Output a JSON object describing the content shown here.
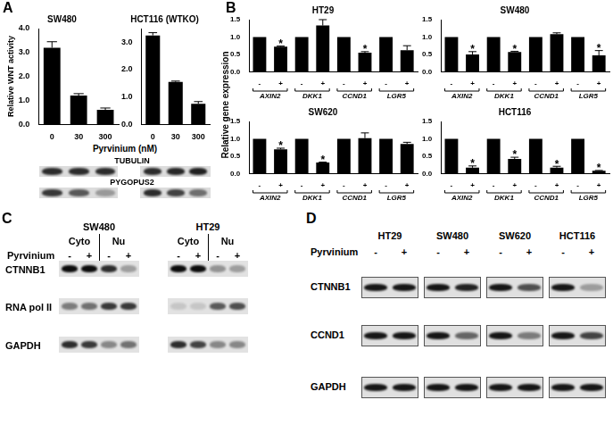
{
  "chart_data": [
    {
      "panel": "A",
      "type": "bar",
      "title": "SW480",
      "ylabel": "Relative WNT activity",
      "xlabel": "Pyrvinium (nM)",
      "categories": [
        "0",
        "30",
        "300"
      ],
      "values": [
        3.2,
        1.2,
        0.6
      ],
      "errors": [
        0.25,
        0.08,
        0.08
      ],
      "color": "#000000",
      "ylim": [
        0,
        4
      ],
      "yticks": [
        {
          "value": 0,
          "label": "0.0"
        },
        {
          "value": 1,
          "label": "1.0"
        },
        {
          "value": 2,
          "label": "2.0"
        },
        {
          "value": 3,
          "label": "3.0"
        },
        {
          "value": 4,
          "label": "4.0"
        }
      ],
      "grid": false
    },
    {
      "type": "bar",
      "title": "HCT116 (WTKO)",
      "categories": [
        "0",
        "30",
        "300"
      ],
      "values": [
        3.25,
        1.55,
        0.75
      ],
      "errors": [
        0.1,
        0.03,
        0.08
      ],
      "color": "#000000",
      "ylim": [
        0,
        3.5
      ],
      "yticks": [
        {
          "value": 0,
          "label": "0.0"
        },
        {
          "value": 1,
          "label": "1.0"
        },
        {
          "value": 2,
          "label": "2.0"
        },
        {
          "value": 3,
          "label": "3.0"
        }
      ],
      "grid": false
    },
    {
      "panel": "B",
      "type": "bar",
      "title": "HT29",
      "ylabel": "Relative gene expression",
      "categories": [
        "-",
        "+",
        "-",
        "+",
        "-",
        "+",
        "-",
        "+"
      ],
      "groups": [
        "AXIN2",
        "DKK1",
        "CCND1",
        "LGR5"
      ],
      "values": [
        1,
        0.72,
        1,
        1.33,
        1,
        0.55,
        1,
        0.62
      ],
      "errors": [
        0,
        0.02,
        0,
        0.17,
        0,
        0.03,
        0,
        0.13
      ],
      "annotations": [
        {
          "index": 1,
          "text": "*"
        },
        {
          "index": 5,
          "text": "*"
        }
      ],
      "color": "#000000",
      "ylim": [
        0,
        1.5
      ],
      "yticks": [
        {
          "value": 0,
          "label": "0.0"
        },
        {
          "value": 0.5,
          "label": "0.5"
        },
        {
          "value": 1,
          "label": "1.0"
        },
        {
          "value": 1.5,
          "label": "1.5"
        }
      ],
      "grid": false
    },
    {
      "type": "bar",
      "title": "SW480",
      "categories": [
        "-",
        "+",
        "-",
        "+",
        "-",
        "+",
        "-",
        "+"
      ],
      "groups": [
        "AXIN2",
        "DKK1",
        "CCND1",
        "LGR5"
      ],
      "values": [
        1,
        0.5,
        1,
        0.57,
        1,
        1.08,
        1,
        0.47
      ],
      "errors": [
        0,
        0.08,
        0,
        0.02,
        0,
        0.04,
        0,
        0.14
      ],
      "annotations": [
        {
          "index": 1,
          "text": "*"
        },
        {
          "index": 3,
          "text": "*"
        },
        {
          "index": 7,
          "text": "*"
        }
      ],
      "color": "#000000",
      "ylim": [
        0,
        1.5
      ],
      "yticks": [
        {
          "value": 0,
          "label": "0.0"
        },
        {
          "value": 0.5,
          "label": "0.5"
        },
        {
          "value": 1,
          "label": "1.0"
        },
        {
          "value": 1.5,
          "label": "1.5"
        }
      ],
      "grid": false
    },
    {
      "type": "bar",
      "title": "SW620",
      "categories": [
        "-",
        "+",
        "-",
        "+",
        "-",
        "+",
        "-",
        "+"
      ],
      "groups": [
        "AXIN2",
        "DKK1",
        "CCND1",
        "LGR5"
      ],
      "values": [
        1,
        0.7,
        1,
        0.32,
        1,
        1.02,
        1,
        0.85
      ],
      "errors": [
        0,
        0.03,
        0,
        0.01,
        0,
        0.15,
        0,
        0.05
      ],
      "annotations": [
        {
          "index": 1,
          "text": "*"
        },
        {
          "index": 3,
          "text": "*"
        }
      ],
      "color": "#000000",
      "ylim": [
        0,
        1.5
      ],
      "yticks": [
        {
          "value": 0,
          "label": "0.0"
        },
        {
          "value": 0.5,
          "label": "0.5"
        },
        {
          "value": 1,
          "label": "1.0"
        },
        {
          "value": 1.5,
          "label": "1.5"
        }
      ],
      "grid": false
    },
    {
      "type": "bar",
      "title": "HCT116",
      "categories": [
        "-",
        "+",
        "-",
        "+",
        "-",
        "+",
        "-",
        "+"
      ],
      "groups": [
        "AXIN2",
        "DKK1",
        "CCND1",
        "LGR5"
      ],
      "values": [
        1,
        0.17,
        1,
        0.42,
        1,
        0.17,
        1,
        0.08
      ],
      "errors": [
        0,
        0.05,
        0,
        0.05,
        0,
        0.04,
        0,
        0.01
      ],
      "annotations": [
        {
          "index": 1,
          "text": "*"
        },
        {
          "index": 3,
          "text": "*"
        },
        {
          "index": 5,
          "text": "*"
        },
        {
          "index": 7,
          "text": "*"
        }
      ],
      "color": "#000000",
      "ylim": [
        0,
        1.5
      ],
      "yticks": [
        {
          "value": 0,
          "label": "0.0"
        },
        {
          "value": 0.5,
          "label": "0.5"
        },
        {
          "value": 1,
          "label": "1.0"
        },
        {
          "value": 1.5,
          "label": "1.5"
        }
      ],
      "grid": false
    }
  ],
  "blots": [
    {
      "rows": [
        "TUBULIN",
        "PYGOPUS2"
      ]
    },
    {
      "panel": "C",
      "pyrvinium_label": "Pyrvinium",
      "cell_lines": [
        {
          "name": "SW480",
          "fractions": [
            {
              "name": "Cyto",
              "lanes": [
                "-",
                "+"
              ]
            },
            {
              "name": "Nu",
              "lanes": [
                "-",
                "+"
              ]
            }
          ]
        },
        {
          "name": "HT29",
          "fractions": [
            {
              "name": "Cyto",
              "lanes": [
                "-",
                "+"
              ]
            },
            {
              "name": "Nu",
              "lanes": [
                "-",
                "+"
              ]
            }
          ]
        }
      ],
      "rows": [
        "CTNNB1",
        "RNA pol II",
        "GAPDH"
      ]
    },
    {
      "panel": "D",
      "pyrvinium_label": "Pyrvinium",
      "cell_lines": [
        {
          "name": "HT29",
          "lanes": [
            "-",
            "+"
          ]
        },
        {
          "name": "SW480",
          "lanes": [
            "-",
            "+"
          ]
        },
        {
          "name": "SW620",
          "lanes": [
            "-",
            "+"
          ]
        },
        {
          "name": "HCT116",
          "lanes": [
            "-",
            "+"
          ]
        }
      ],
      "rows": [
        "CTNNB1",
        "CCND1",
        "GAPDH"
      ]
    }
  ]
}
